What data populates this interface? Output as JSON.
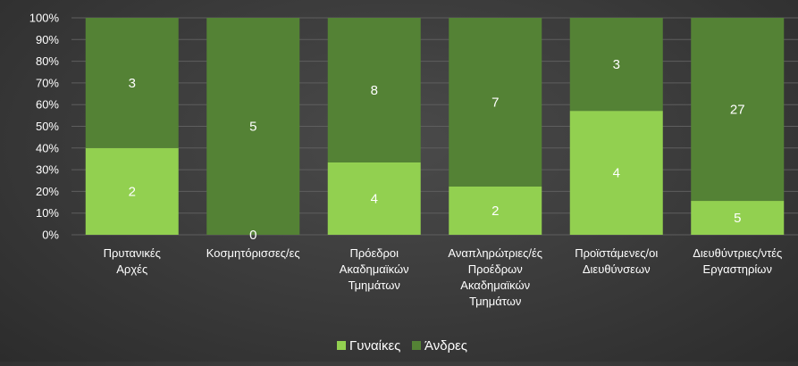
{
  "chart_data": {
    "type": "bar",
    "stacked": "percent",
    "title": "",
    "xlabel": "",
    "ylabel": "",
    "ylim": [
      0,
      100
    ],
    "y_ticks": [
      "0%",
      "10%",
      "20%",
      "30%",
      "40%",
      "50%",
      "60%",
      "70%",
      "80%",
      "90%",
      "100%"
    ],
    "categories": [
      [
        "Πρυτανικές",
        "Αρχές"
      ],
      [
        "Κοσμητόρισσες/ες"
      ],
      [
        "Πρόεδροι",
        "Ακαδημαϊκών",
        "Τμημάτων"
      ],
      [
        "Αναπληρώτριες/ές",
        "Προέδρων",
        "Ακαδημαϊκών",
        "Τμημάτων"
      ],
      [
        "Προϊστάμενες/οι",
        "Διευθύνσεων"
      ],
      [
        "Διευθύντριες/ντές",
        "Εργαστηρίων"
      ]
    ],
    "series": [
      {
        "name": "Γυναίκες",
        "color": "#92d050",
        "values": [
          2,
          0,
          4,
          2,
          4,
          5
        ]
      },
      {
        "name": "Άνδρες",
        "color": "#548235",
        "values": [
          3,
          5,
          8,
          7,
          3,
          27
        ]
      }
    ],
    "grid": true,
    "legend_position": "bottom"
  }
}
